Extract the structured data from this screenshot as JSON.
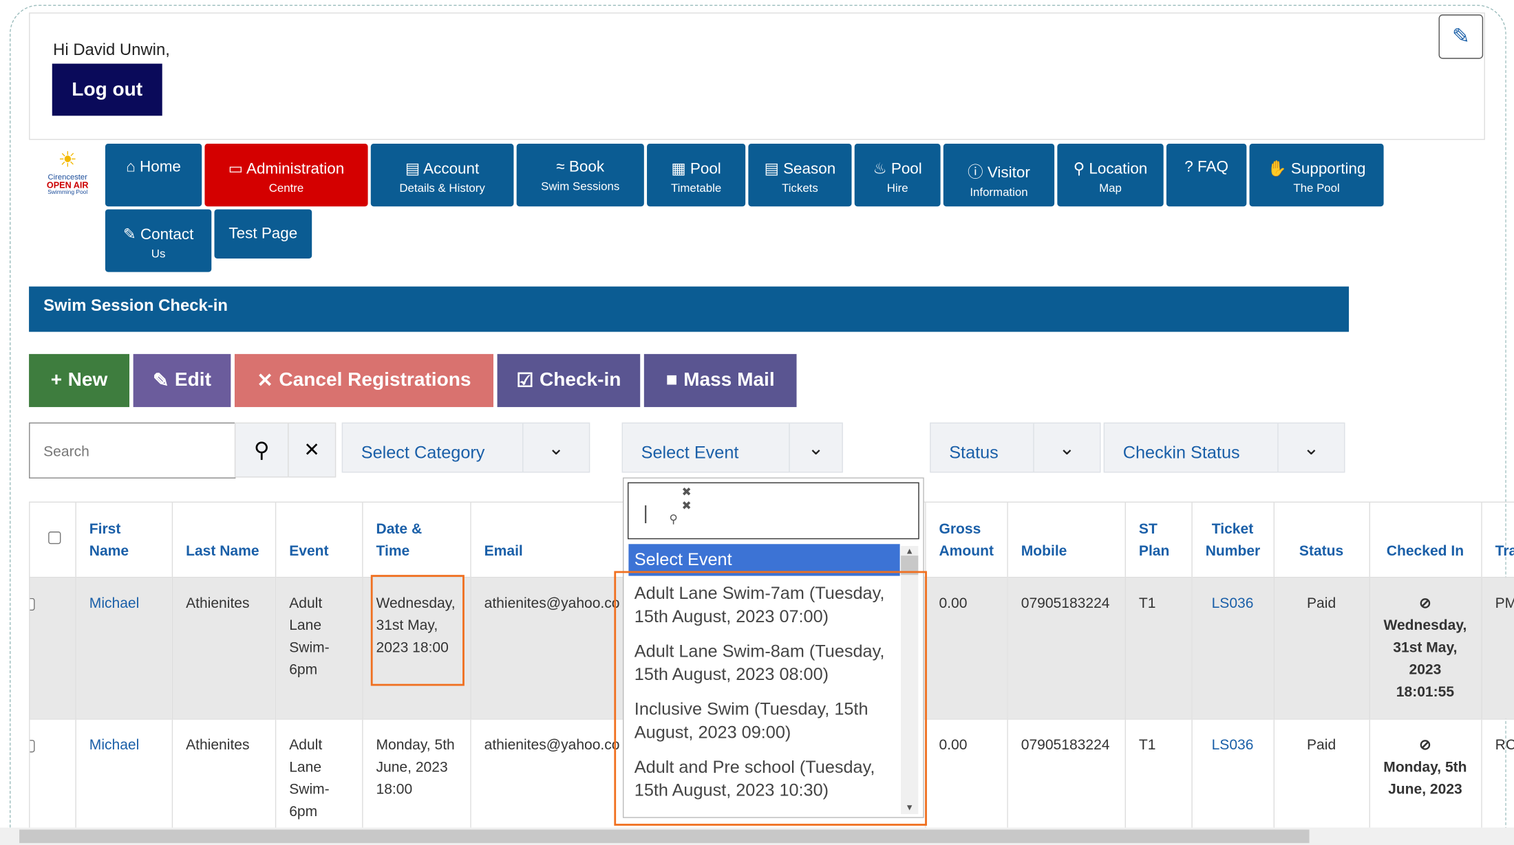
{
  "header": {
    "greeting": "Hi David Unwin,",
    "logout": "Log out"
  },
  "logo": [
    "Cirencester",
    "OPEN AIR",
    "Swimming Pool"
  ],
  "nav": [
    {
      "title": "Home"
    },
    {
      "title": "Administration",
      "subtitle": "Centre"
    },
    {
      "title": "Account",
      "subtitle": "Details & History"
    },
    {
      "title": "Book",
      "subtitle": "Swim Sessions"
    },
    {
      "title": "Pool",
      "subtitle": "Timetable"
    },
    {
      "title": "Season",
      "subtitle": "Tickets"
    },
    {
      "title": "Pool",
      "subtitle": "Hire"
    },
    {
      "title": "Visitor",
      "subtitle": "Information"
    },
    {
      "title": "Location",
      "subtitle": "Map"
    },
    {
      "title": "FAQ"
    },
    {
      "title": "Supporting",
      "subtitle": "The Pool"
    },
    {
      "title": "Contact",
      "subtitle": "Us"
    },
    {
      "title": "Test Page"
    }
  ],
  "panel_title": "Swim Session Check-in",
  "toolbar": [
    "New",
    "Edit",
    "Cancel Registrations",
    "Check-in",
    "Mass Mail"
  ],
  "filters": {
    "search": "Search",
    "category": "Select Category",
    "event": "Select Event",
    "status": "Status",
    "checkin": "Checkin Status"
  },
  "dropdown": {
    "options": [
      "Select Event",
      "Adult Lane Swim-7am (Tuesday, 15th August, 2023 07:00)",
      "Adult Lane Swim-8am (Tuesday, 15th August, 2023 08:00)",
      "Inclusive Swim (Tuesday, 15th August, 2023 09:00)",
      "Adult and Pre school (Tuesday, 15th August, 2023 10:30)"
    ]
  },
  "table": {
    "headers": [
      "First Name",
      "Last Name",
      "Event",
      "Date & Time",
      "Email",
      "Gross Amount",
      "Mobile",
      "ST Plan",
      "Ticket Number",
      "Status",
      "Checked In",
      "Tra"
    ],
    "rows": [
      [
        "Michael",
        "Athienites",
        "Adult Lane Swim-6pm",
        "Wednesday, 31st May, 2023 18:00",
        "athienites@yahoo.co",
        "0.00",
        "07905183224",
        "T1",
        "LS036",
        "Paid",
        "Wednesday, 31st May, 2023 18:01:55",
        "PM"
      ],
      [
        "Michael",
        "Athienites",
        "Adult Lane Swim-6pm",
        "Monday, 5th June, 2023 18:00",
        "athienites@yahoo.co",
        "0.00",
        "07905183224",
        "T1",
        "LS036",
        "Paid",
        "Monday, 5th June, 2023",
        "RC"
      ]
    ]
  }
}
